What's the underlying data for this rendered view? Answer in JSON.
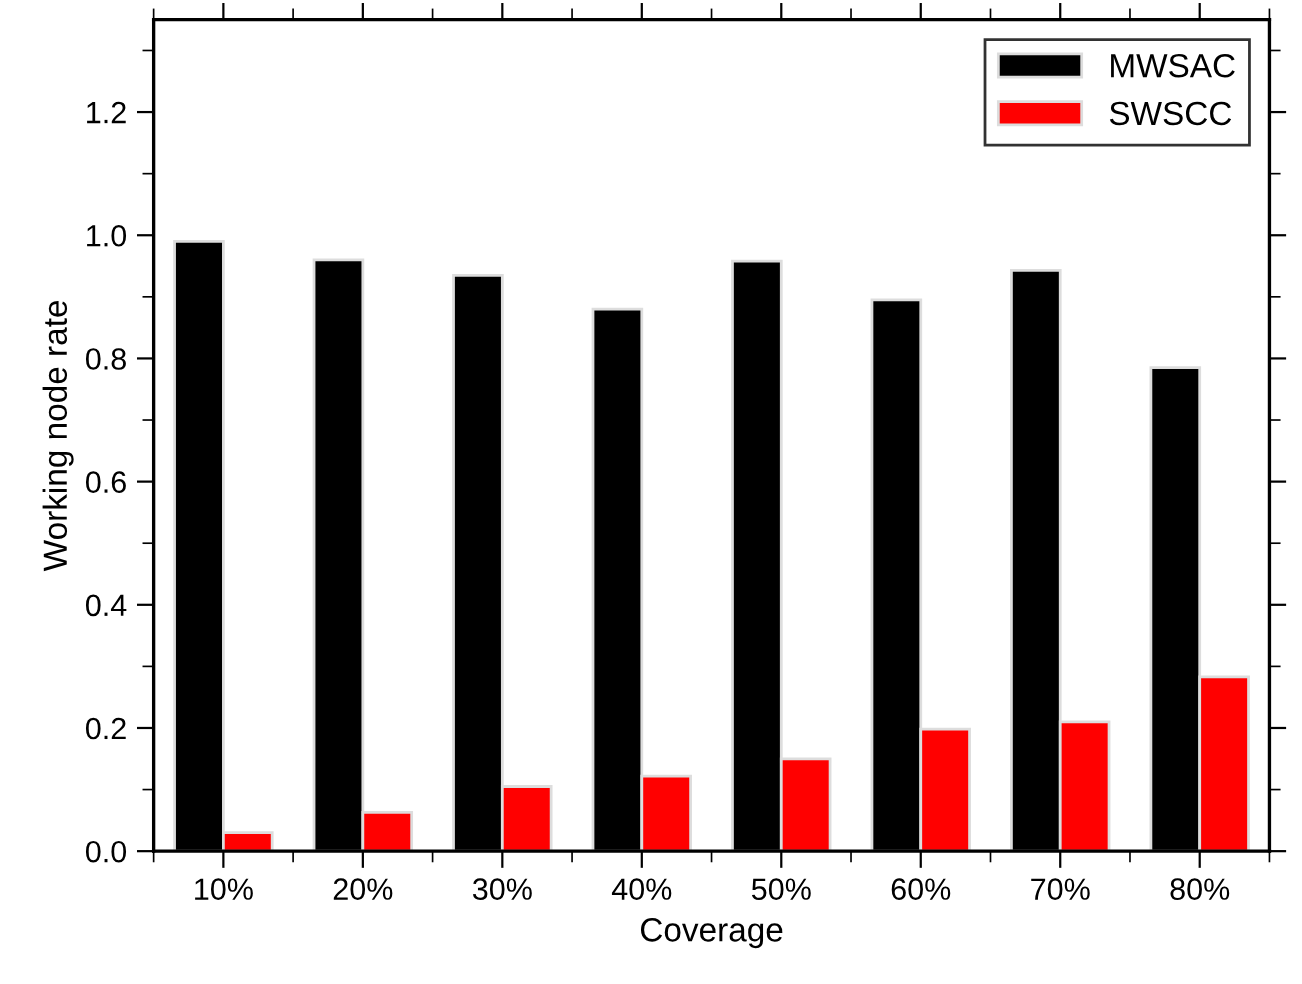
{
  "chart_data": {
    "type": "bar",
    "xlabel": "Coverage",
    "ylabel": "Working node rate",
    "categories": [
      "10%",
      "20%",
      "30%",
      "40%",
      "50%",
      "60%",
      "70%",
      "80%"
    ],
    "series": [
      {
        "name": "MWSAC",
        "color": "#000000",
        "values": [
          0.99,
          0.96,
          0.935,
          0.88,
          0.958,
          0.895,
          0.943,
          0.785
        ]
      },
      {
        "name": "SWSCC",
        "color": "#ff0000",
        "values": [
          0.03,
          0.063,
          0.105,
          0.122,
          0.15,
          0.198,
          0.21,
          0.283
        ]
      }
    ],
    "ylim": [
      0,
      1.35
    ],
    "yticks": [
      {
        "value": 0,
        "label": "0.0"
      },
      0.2,
      0.4,
      0.6,
      0.8,
      {
        "value": 1,
        "label": "1.0"
      },
      1.2
    ],
    "grid": false,
    "legend": "top right"
  }
}
